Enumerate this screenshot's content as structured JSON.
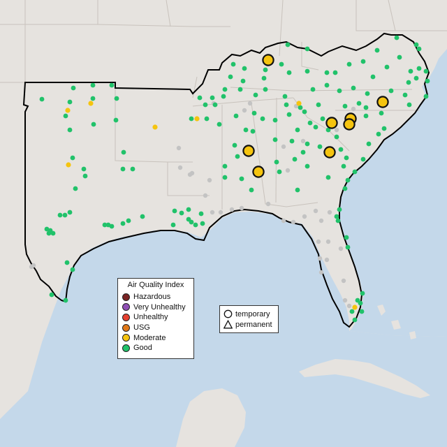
{
  "map": {
    "colors": {
      "land": "#e6e3df",
      "water": "#c4d8ea",
      "border": "#c8c2bc",
      "outline": "#000000",
      "good": "#21c26a",
      "moderate": "#f5c40f",
      "usg": "#e07818",
      "unhealthy": "#e5402f",
      "very_unhealthy": "#8f4fb4",
      "hazardous": "#7a2424",
      "inactive": "#c3c3c3"
    }
  },
  "legend": {
    "title": "Air Quality Index",
    "items": [
      {
        "label": "Hazardous",
        "color": "#7a2424"
      },
      {
        "label": "Very Unhealthy",
        "color": "#8f4fb4"
      },
      {
        "label": "Unhealthy",
        "color": "#e5402f"
      },
      {
        "label": "USG",
        "color": "#e07818"
      },
      {
        "label": "Moderate",
        "color": "#f5c40f"
      },
      {
        "label": "Good",
        "color": "#21c26a"
      }
    ]
  },
  "type_legend": {
    "items": [
      {
        "label": "temporary",
        "shape": "circle"
      },
      {
        "label": "permanent",
        "shape": "triangle"
      }
    ]
  }
}
